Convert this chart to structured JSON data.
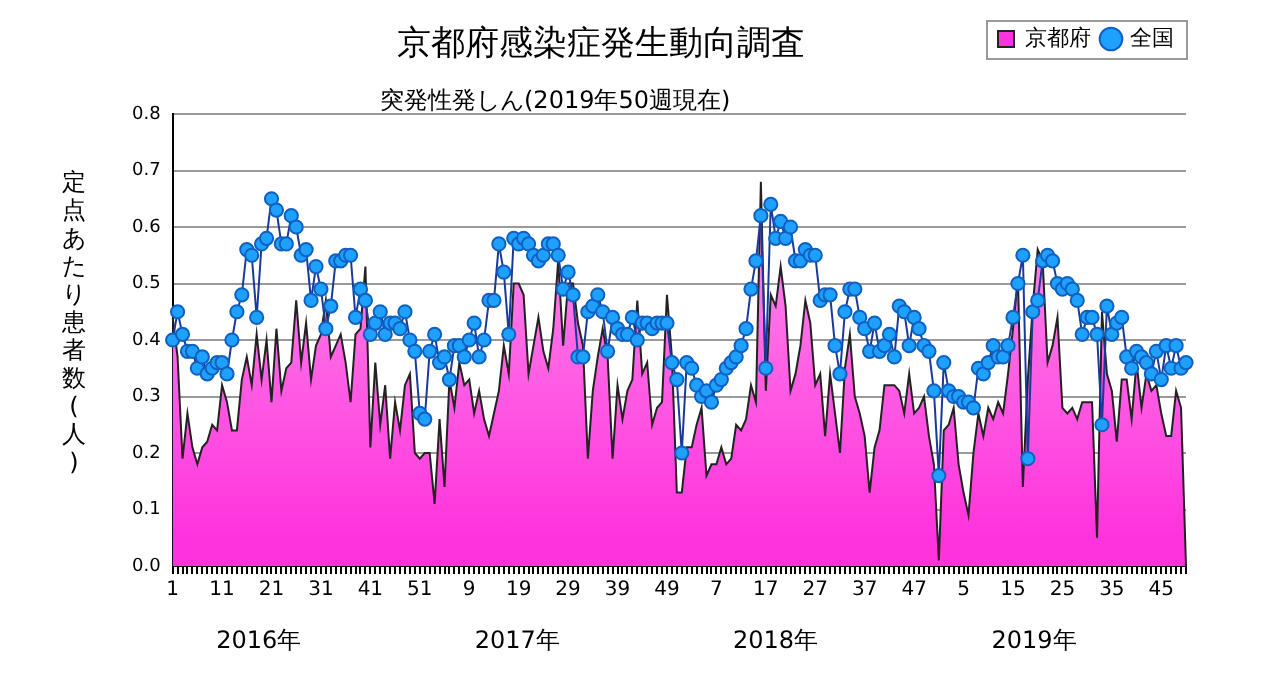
{
  "chart_data": {
    "type": "line",
    "title": "京都府感染症発生動向調査",
    "subtitle": "突発性発しん(2019年50週現在)",
    "ylabel": "定点あたり患者数(人)",
    "categories": [
      "1",
      null,
      null,
      null,
      null,
      null,
      null,
      null,
      null,
      null,
      "11",
      null,
      null,
      null,
      null,
      null,
      null,
      null,
      null,
      null,
      "21",
      null,
      null,
      null,
      null,
      null,
      null,
      null,
      null,
      null,
      "31",
      null,
      null,
      null,
      null,
      null,
      null,
      null,
      null,
      null,
      "41",
      null,
      null,
      null,
      null,
      null,
      null,
      null,
      null,
      null,
      "51",
      null,
      null,
      null,
      null,
      null,
      null,
      null,
      null,
      null,
      "9",
      null,
      null,
      null,
      null,
      null,
      null,
      null,
      null,
      null,
      "19",
      null,
      null,
      null,
      null,
      null,
      null,
      null,
      null,
      null,
      "29",
      null,
      null,
      null,
      null,
      null,
      null,
      null,
      null,
      null,
      "39",
      null,
      null,
      null,
      null,
      null,
      null,
      null,
      null,
      null,
      "49",
      null,
      null,
      null,
      null,
      null,
      null,
      null,
      null,
      null,
      "7",
      null,
      null,
      null,
      null,
      null,
      null,
      null,
      null,
      null,
      "17",
      null,
      null,
      null,
      null,
      null,
      null,
      null,
      null,
      null,
      "27",
      null,
      null,
      null,
      null,
      null,
      null,
      null,
      null,
      null,
      "37",
      null,
      null,
      null,
      null,
      null,
      null,
      null,
      null,
      null,
      "47",
      null,
      null,
      null,
      null,
      null,
      null,
      null,
      null,
      null,
      "5",
      null,
      null,
      null,
      null,
      null,
      null,
      null,
      null,
      null,
      "15",
      null,
      null,
      null,
      null,
      null,
      null,
      null,
      null,
      null,
      "25",
      null,
      null,
      null,
      null,
      null,
      null,
      null,
      null,
      null,
      "35",
      null,
      null,
      null,
      null,
      null,
      null,
      null,
      null,
      null,
      "45",
      null,
      null,
      null,
      null,
      null
    ],
    "series": [
      {
        "name": "京都府",
        "type": "area",
        "color": "#ff33dd",
        "values": [
          0.44,
          0.37,
          0.19,
          0.27,
          0.21,
          0.18,
          0.21,
          0.22,
          0.25,
          0.24,
          0.32,
          0.29,
          0.24,
          0.24,
          0.33,
          0.37,
          0.32,
          0.41,
          0.33,
          0.4,
          0.29,
          0.42,
          0.31,
          0.35,
          0.36,
          0.47,
          0.36,
          0.43,
          0.33,
          0.39,
          0.41,
          0.47,
          0.37,
          0.39,
          0.41,
          0.36,
          0.29,
          0.41,
          0.42,
          0.53,
          0.21,
          0.36,
          0.25,
          0.32,
          0.19,
          0.29,
          0.24,
          0.32,
          0.34,
          0.2,
          0.19,
          0.2,
          0.2,
          0.11,
          0.26,
          0.14,
          0.33,
          0.28,
          0.36,
          0.32,
          0.33,
          0.27,
          0.31,
          0.26,
          0.23,
          0.27,
          0.31,
          0.39,
          0.34,
          0.5,
          0.5,
          0.48,
          0.34,
          0.39,
          0.44,
          0.38,
          0.35,
          0.42,
          0.54,
          0.39,
          0.5,
          0.5,
          0.43,
          0.39,
          0.19,
          0.31,
          0.37,
          0.42,
          0.37,
          0.19,
          0.32,
          0.26,
          0.31,
          0.33,
          0.47,
          0.34,
          0.36,
          0.25,
          0.28,
          0.29,
          0.48,
          0.37,
          0.13,
          0.13,
          0.21,
          0.21,
          0.25,
          0.28,
          0.16,
          0.18,
          0.18,
          0.21,
          0.18,
          0.19,
          0.25,
          0.24,
          0.26,
          0.32,
          0.29,
          0.68,
          0.31,
          0.48,
          0.46,
          0.53,
          0.46,
          0.31,
          0.34,
          0.39,
          0.47,
          0.43,
          0.32,
          0.34,
          0.23,
          0.34,
          0.27,
          0.2,
          0.35,
          0.41,
          0.3,
          0.27,
          0.23,
          0.13,
          0.21,
          0.24,
          0.32,
          0.32,
          0.32,
          0.31,
          0.27,
          0.34,
          0.27,
          0.28,
          0.3,
          0.23,
          0.18,
          0.01,
          0.24,
          0.25,
          0.28,
          0.18,
          0.13,
          0.09,
          0.2,
          0.27,
          0.23,
          0.28,
          0.26,
          0.29,
          0.27,
          0.34,
          0.42,
          0.51,
          0.14,
          0.33,
          0.46,
          0.56,
          0.54,
          0.36,
          0.39,
          0.44,
          0.28,
          0.27,
          0.28,
          0.26,
          0.29,
          0.29,
          0.29,
          0.05,
          0.45,
          0.34,
          0.31,
          0.22,
          0.33,
          0.33,
          0.26,
          0.36,
          0.28,
          0.34,
          0.31,
          0.32,
          0.27,
          0.23,
          0.23,
          0.31,
          0.28,
          0.0
        ]
      },
      {
        "name": "全国",
        "type": "line",
        "marker": "circle",
        "color": "#1ea0ff",
        "values": [
          0.4,
          0.45,
          0.41,
          0.38,
          0.38,
          0.35,
          0.37,
          0.34,
          0.35,
          0.36,
          0.36,
          0.34,
          0.4,
          0.45,
          0.48,
          0.56,
          0.55,
          0.44,
          0.57,
          0.58,
          0.65,
          0.63,
          0.57,
          0.57,
          0.62,
          0.6,
          0.55,
          0.56,
          0.47,
          0.53,
          0.49,
          0.42,
          0.46,
          0.54,
          0.54,
          0.55,
          0.55,
          0.44,
          0.49,
          0.47,
          0.41,
          0.43,
          0.45,
          0.41,
          0.43,
          0.43,
          0.42,
          0.45,
          0.4,
          0.38,
          0.27,
          0.26,
          0.38,
          0.41,
          0.36,
          0.37,
          0.33,
          0.39,
          0.39,
          0.37,
          0.4,
          0.43,
          0.37,
          0.4,
          0.47,
          0.47,
          0.57,
          0.52,
          0.41,
          0.58,
          0.57,
          0.58,
          0.57,
          0.55,
          0.54,
          0.55,
          0.57,
          0.57,
          0.55,
          0.49,
          0.52,
          0.48,
          0.37,
          0.37,
          0.45,
          0.46,
          0.48,
          0.45,
          0.38,
          0.44,
          0.42,
          0.41,
          0.41,
          0.44,
          0.4,
          0.43,
          0.43,
          0.42,
          0.43,
          0.43,
          0.43,
          0.36,
          0.33,
          0.2,
          0.36,
          0.35,
          0.32,
          0.3,
          0.31,
          0.29,
          0.32,
          0.33,
          0.35,
          0.36,
          0.37,
          0.39,
          0.42,
          0.49,
          0.54,
          0.62,
          0.35,
          0.64,
          0.58,
          0.61,
          0.58,
          0.6,
          0.54,
          0.54,
          0.56,
          0.55,
          0.55,
          0.47,
          0.48,
          0.48,
          0.39,
          0.34,
          0.45,
          0.49,
          0.49,
          0.44,
          0.42,
          0.38,
          0.43,
          0.38,
          0.39,
          0.41,
          0.37,
          0.46,
          0.45,
          0.39,
          0.44,
          0.42,
          0.39,
          0.38,
          0.31,
          0.16,
          0.36,
          0.31,
          0.3,
          0.3,
          0.29,
          0.29,
          0.28,
          0.35,
          0.34,
          0.36,
          0.39,
          0.37,
          0.37,
          0.39,
          0.44,
          0.5,
          0.55,
          0.19,
          0.45,
          0.47,
          0.54,
          0.55,
          0.54,
          0.5,
          0.49,
          0.5,
          0.49,
          0.47,
          0.41,
          0.44,
          0.44,
          0.41,
          0.25,
          0.46,
          0.41,
          0.43,
          0.44,
          0.37,
          0.35,
          0.38,
          0.37,
          0.36,
          0.34,
          0.38,
          0.33,
          0.39,
          0.35,
          0.39,
          0.35,
          0.36
        ]
      }
    ],
    "ylim": [
      0,
      0.8
    ],
    "yticks": [
      {
        "value": 0,
        "label": "0.0"
      },
      {
        "value": 0.1,
        "label": "0.1"
      },
      {
        "value": 0.2,
        "label": "0.2"
      },
      {
        "value": 0.3,
        "label": "0.3"
      },
      {
        "value": 0.4,
        "label": "0.4"
      },
      {
        "value": 0.5,
        "label": "0.5"
      },
      {
        "value": 0.6,
        "label": "0.6"
      },
      {
        "value": 0.7,
        "label": "0.7"
      },
      {
        "value": 0.8,
        "label": "0.8"
      }
    ],
    "grid": "y",
    "legend": "top right",
    "annotations": [
      "2016年",
      "2017年",
      "2018年",
      "2019年"
    ]
  }
}
